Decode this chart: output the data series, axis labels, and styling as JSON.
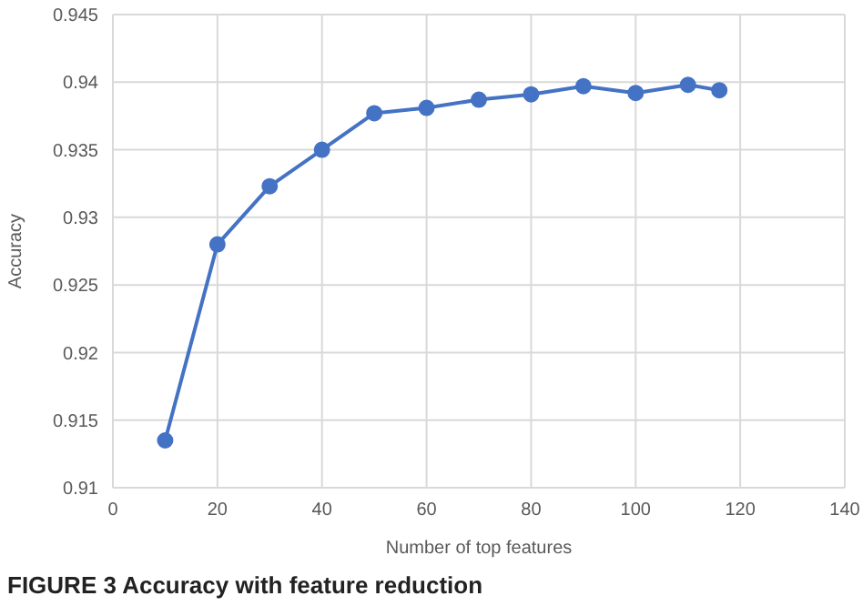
{
  "chart_data": {
    "type": "line",
    "xlabel": "Number of top features",
    "ylabel": "Accuracy",
    "x": [
      10,
      20,
      30,
      40,
      50,
      60,
      70,
      80,
      90,
      100,
      110,
      116
    ],
    "series": [
      {
        "color": "#4472c4",
        "values": [
          0.9135,
          0.928,
          0.9323,
          0.935,
          0.9377,
          0.9381,
          0.9387,
          0.9391,
          0.9397,
          0.9392,
          0.9398,
          0.9394
        ]
      }
    ],
    "xlim": [
      0,
      140
    ],
    "xticks": [
      0,
      20,
      40,
      60,
      80,
      100,
      120,
      140
    ],
    "ylim": [
      0.91,
      0.945
    ],
    "yticks": [
      0.91,
      0.915,
      0.92,
      0.925,
      0.93,
      0.935,
      0.94,
      0.945
    ],
    "grid": true,
    "marker": "circle",
    "line_style": "solid",
    "annotations": [
      "FIGURE 3 Accuracy with feature reduction"
    ]
  }
}
